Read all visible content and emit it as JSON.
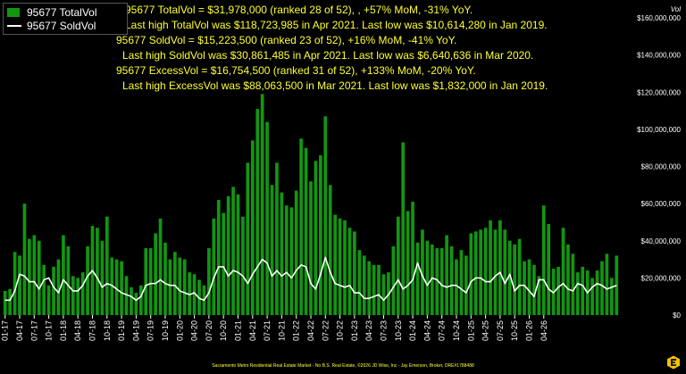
{
  "chart_data": {
    "type": "bar",
    "title": "",
    "xlabel": "",
    "ylabel": "Vol",
    "ylim": [
      0,
      160000000
    ],
    "y_ticks": [
      "$0",
      "$20,000,000",
      "$40,000,000",
      "$60,000,000",
      "$80,000,000",
      "$100,000,000",
      "$120,000,000",
      "$140,000,000",
      "$160,000,000"
    ],
    "y_tick_values": [
      0,
      20000000,
      40000000,
      60000000,
      80000000,
      100000000,
      120000000,
      140000000,
      160000000
    ],
    "x_tick_labels": [
      "01-17",
      "04-17",
      "07-17",
      "10-17",
      "01-18",
      "04-18",
      "07-18",
      "10-18",
      "01-19",
      "04-19",
      "07-19",
      "10-19",
      "01-20",
      "04-20",
      "07-20",
      "10-20",
      "01-21",
      "04-21",
      "07-21",
      "10-21",
      "01-22",
      "04-22",
      "07-22",
      "10-22",
      "01-23",
      "04-23",
      "07-23",
      "10-23",
      "01-24",
      "04-24",
      "07-24",
      "10-24",
      "01-25",
      "04-25",
      "07-25",
      "10-25",
      "01-26",
      "04-26"
    ],
    "x_tick_start": "2017-01",
    "x_tick_step_months": 3,
    "start_month": "2017-01",
    "grid": false,
    "legend_position": "top-left",
    "series": [
      {
        "name": "95677 TotalVol",
        "kind": "bar",
        "color": "#129612",
        "values": [
          13000000,
          14000000,
          34000000,
          32000000,
          60000000,
          41000000,
          43000000,
          40000000,
          27000000,
          16000000,
          26000000,
          30000000,
          43000000,
          37000000,
          21000000,
          20000000,
          23000000,
          37000000,
          48000000,
          47000000,
          40000000,
          53000000,
          31000000,
          30000000,
          29000000,
          21000000,
          15000000,
          12000000,
          16000000,
          36000000,
          36000000,
          44000000,
          52000000,
          39000000,
          30000000,
          34000000,
          31000000,
          30000000,
          23000000,
          22000000,
          19000000,
          16000000,
          36000000,
          52000000,
          62000000,
          55000000,
          64000000,
          69000000,
          65000000,
          53000000,
          82000000,
          94000000,
          111000000,
          119000000,
          104000000,
          70000000,
          82000000,
          66000000,
          59000000,
          58000000,
          67000000,
          95000000,
          90000000,
          72000000,
          83000000,
          86000000,
          107000000,
          70000000,
          54000000,
          52000000,
          51000000,
          47000000,
          45000000,
          35000000,
          32000000,
          29000000,
          27000000,
          27000000,
          22000000,
          23000000,
          37000000,
          53000000,
          93000000,
          56000000,
          61000000,
          39000000,
          46000000,
          40000000,
          38000000,
          36000000,
          36000000,
          43000000,
          37000000,
          30000000,
          35000000,
          32000000,
          44000000,
          45000000,
          46000000,
          47000000,
          51000000,
          46000000,
          51000000,
          46000000,
          40000000,
          38000000,
          41000000,
          29000000,
          30000000,
          27000000,
          21000000,
          59000000,
          49000000,
          25000000,
          26000000,
          47000000,
          38000000,
          33000000,
          23000000,
          26000000,
          24000000,
          20000000,
          24000000,
          29000000,
          33000000,
          20000000,
          32000000
        ]
      },
      {
        "name": "95677 SoldVol",
        "kind": "line",
        "color": "#ffffff",
        "values": [
          8000000,
          8000000,
          13000000,
          22000000,
          21000000,
          18000000,
          18000000,
          14000000,
          19000000,
          20000000,
          15000000,
          12000000,
          19000000,
          16000000,
          13000000,
          13000000,
          16000000,
          21000000,
          24000000,
          20000000,
          15000000,
          17000000,
          16000000,
          14000000,
          12000000,
          11000000,
          10000000,
          8000000,
          10000000,
          16000000,
          17000000,
          17000000,
          19000000,
          17000000,
          16000000,
          16000000,
          13000000,
          12000000,
          11000000,
          12000000,
          9000000,
          8000000,
          12000000,
          20000000,
          26000000,
          26000000,
          21000000,
          24000000,
          23000000,
          21000000,
          17000000,
          22000000,
          26000000,
          30000000,
          28000000,
          21000000,
          24000000,
          21000000,
          23000000,
          20000000,
          24000000,
          27000000,
          26000000,
          17000000,
          14000000,
          22000000,
          31000000,
          23000000,
          17000000,
          16000000,
          15000000,
          16000000,
          12000000,
          12000000,
          9000000,
          9000000,
          10000000,
          11000000,
          8000000,
          11000000,
          15000000,
          19000000,
          14000000,
          16000000,
          19000000,
          28000000,
          21000000,
          16000000,
          20000000,
          19000000,
          16000000,
          15000000,
          16000000,
          16000000,
          14000000,
          12000000,
          18000000,
          20000000,
          20000000,
          18000000,
          18000000,
          21000000,
          23000000,
          17000000,
          22000000,
          13000000,
          16000000,
          16000000,
          13000000,
          10000000,
          19000000,
          19000000,
          14000000,
          12000000,
          15000000,
          17000000,
          14000000,
          13000000,
          17000000,
          16000000,
          12000000,
          15000000,
          17000000,
          16000000,
          14000000,
          15000000,
          16000000
        ]
      }
    ],
    "annotations": [
      "95677 TotalVol = $31,978,000 (ranked 28 of 52), , +57% MoM, -31% YoY.",
      "Last high TotalVol was $118,723,985 in Apr 2021. Last low was $10,614,280 in Jan 2019.",
      "95677 SoldVol = $15,223,500 (ranked 23 of 52), +16% MoM, -41% YoY.",
      "Last high SoldVol was $30,861,485 in Apr 2021. Last low was $6,640,636 in Mar 2020.",
      "95677 ExcessVol = $16,754,500 (ranked 31 of 52), +133% MoM, -20% YoY.",
      "Last high ExcessVol was $88,063,500 in Mar 2021. Last low was $1,832,000 in Jan 2019."
    ]
  },
  "footer": "Sacramento Metro Residential Real Estate Market - No B.S. Real Estate, ©2026 JD Wise, Inc - Jay Emerson, Broker, DRE#1788488",
  "colors": {
    "background": "#000000",
    "bar": "#129612",
    "line": "#ffffff",
    "annotation": "#ffff33",
    "axis_text": "#ffffff"
  },
  "logo_icon": "hexagon-logo-icon"
}
